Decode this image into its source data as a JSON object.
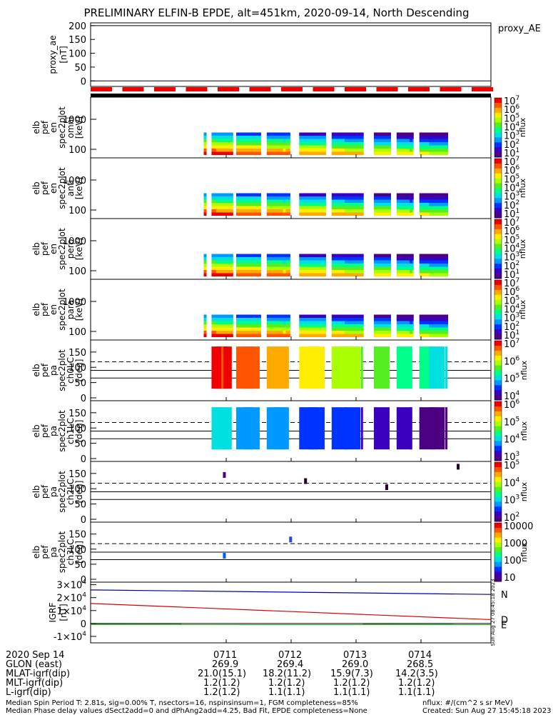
{
  "title": "PRELIMINARY ELFIN-B EPDE, alt=451km, 2020-09-14, North Descending",
  "proxy_label": "proxy_AE",
  "footer": {
    "date_label": "2020 Sep 14",
    "rows": [
      {
        "label": "GLON (east)",
        "values": [
          "269.9",
          "269.4",
          "269.0",
          "268.5"
        ]
      },
      {
        "label": "MLAT-igrf(dip)",
        "values": [
          "21.0(15.1)",
          "18.2(11.2)",
          "15.9(7.3)",
          "14.2(3.5)"
        ]
      },
      {
        "label": "MLT-igrf(dip)",
        "values": [
          "1.2(1.2)",
          "1.2(1.2)",
          "1.2(1.2)",
          "1.2(1.2)"
        ]
      },
      {
        "label": "L-igrf(dip)",
        "values": [
          "1.2(1.2)",
          "1.1(1.1)",
          "1.1(1.1)",
          "1.1(1.1)"
        ]
      }
    ],
    "time_ticks": [
      "0711",
      "0712",
      "0713",
      "0714"
    ],
    "note_left_1": "Median Spin Period T: 2.81s, sig=0.00% T, nsectors=16, nspinsinsum=1, FGM completeness=85%",
    "note_left_2": "Median Phase delay values dSect2add=0 and dPhAng2add=4.25, Bad Fit, EPDE completeness=None",
    "note_right_1": "nflux: #/(cm^2 s sr MeV)",
    "note_right_2": "Created: Sun Aug 27 15:45:18 2023",
    "rotated_stamp": "Sun Aug 27 08:45:18 2023"
  },
  "chart_data": [
    {
      "type": "line",
      "panel": "proxy_ae",
      "ylabel": [
        "proxy_ae",
        "[nT]"
      ],
      "ylim": [
        -20,
        210
      ],
      "yticks": [
        "0",
        "50",
        "100",
        "150",
        "200"
      ],
      "series": []
    },
    {
      "type": "heatmap",
      "panel": "en_omni",
      "ylabel": [
        "elb",
        "pef",
        "en",
        "spec2plot",
        "omni",
        "[keV]"
      ],
      "yticks": [
        "100",
        "1000"
      ],
      "cb_ticks": [
        "10^1",
        "10^2",
        "10^3",
        "10^4",
        "10^5",
        "10^6",
        "10^7"
      ],
      "cb_label": "nflux"
    },
    {
      "type": "heatmap",
      "panel": "en_anti",
      "ylabel": [
        "elb",
        "pef",
        "en",
        "spec2plot",
        "anti",
        "[keV]"
      ],
      "yticks": [
        "100",
        "1000"
      ],
      "cb_ticks": [
        "10^1",
        "10^2",
        "10^3",
        "10^4",
        "10^5",
        "10^6",
        "10^7"
      ],
      "cb_label": "nflux"
    },
    {
      "type": "heatmap",
      "panel": "en_perp",
      "ylabel": [
        "elb",
        "pef",
        "en",
        "spec2plot",
        "perp",
        "[keV]"
      ],
      "yticks": [
        "100",
        "1000"
      ],
      "cb_ticks": [
        "10^1",
        "10^2",
        "10^3",
        "10^4",
        "10^5",
        "10^6",
        "10^7"
      ],
      "cb_label": "nflux"
    },
    {
      "type": "heatmap",
      "panel": "en_para",
      "ylabel": [
        "elb",
        "pef",
        "en",
        "spec2plot",
        "para",
        "[keV]"
      ],
      "yticks": [
        "100",
        "1000"
      ],
      "cb_ticks": [
        "10^1",
        "10^2",
        "10^3",
        "10^4",
        "10^5",
        "10^6",
        "10^7"
      ],
      "cb_label": "nflux"
    },
    {
      "type": "heatmap",
      "panel": "pa_ch0",
      "ylabel": [
        "elb",
        "pef",
        "pa",
        "spec2plot",
        "ch0LC",
        "[deg]"
      ],
      "yticks": [
        "0",
        "50",
        "100",
        "150"
      ],
      "cb_ticks": [
        "10^4",
        "10^5",
        "10^6",
        "10^7"
      ],
      "cb_label": "nflux"
    },
    {
      "type": "heatmap",
      "panel": "pa_ch1",
      "ylabel": [
        "elb",
        "pef",
        "pa",
        "spec2plot",
        "ch1LC",
        "[deg]"
      ],
      "yticks": [
        "0",
        "50",
        "100",
        "150"
      ],
      "cb_ticks": [
        "10^3",
        "10^4",
        "10^5",
        "10^6"
      ],
      "cb_label": "nflux"
    },
    {
      "type": "heatmap",
      "panel": "pa_ch2",
      "ylabel": [
        "elb",
        "pef",
        "pa",
        "spec2plot",
        "ch2LC",
        "[deg]"
      ],
      "yticks": [
        "0",
        "50",
        "100",
        "150"
      ],
      "cb_ticks": [
        "10^2",
        "10^3",
        "10^4",
        "10^5"
      ],
      "cb_label": "nflux"
    },
    {
      "type": "heatmap",
      "panel": "pa_ch3",
      "ylabel": [
        "elb",
        "pef",
        "pa",
        "spec2plot",
        "ch3LC",
        "[deg]"
      ],
      "yticks": [
        "0",
        "50",
        "100",
        "150"
      ],
      "cb_ticks": [
        "10",
        "100",
        "1000",
        "10000"
      ],
      "cb_label": "nflux"
    },
    {
      "type": "line",
      "panel": "igrf",
      "ylabel": [
        "IGRF",
        "[nT]"
      ],
      "ylim": [
        -15000,
        32000
      ],
      "yticks": [
        "-1×10^4",
        "0",
        "1×10^4",
        "2×10^4",
        "3×10^4"
      ],
      "series": [
        {
          "name": "N",
          "color": "#0000aa",
          "x": [
            0,
            1
          ],
          "y": [
            26000,
            22500
          ]
        },
        {
          "name": "D",
          "color": "#dd0000",
          "x": [
            0,
            1
          ],
          "y": [
            15500,
            3000
          ]
        },
        {
          "name": "E",
          "color": "#00aa00",
          "x": [
            0,
            1
          ],
          "y": [
            -700,
            -800
          ]
        }
      ]
    }
  ]
}
